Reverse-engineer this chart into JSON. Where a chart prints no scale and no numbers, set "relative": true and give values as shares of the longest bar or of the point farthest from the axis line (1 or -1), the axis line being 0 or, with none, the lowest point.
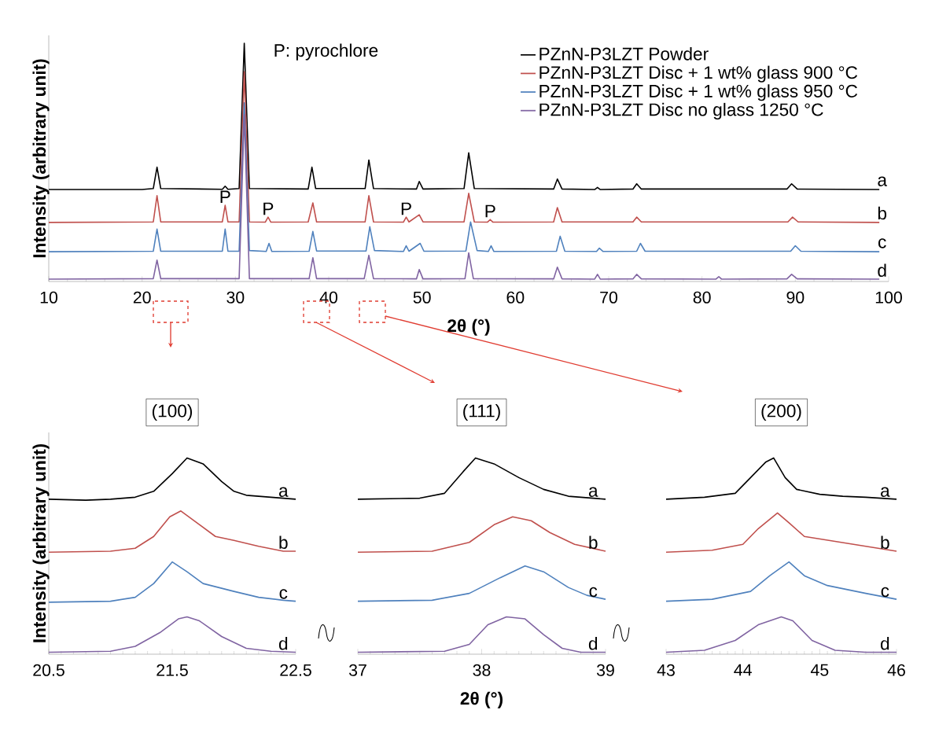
{
  "chart_data": [
    {
      "type": "line",
      "relative": true,
      "xlabel": "2θ (°)",
      "ylabel": "Intensity (arbitrary unit)",
      "xlim": [
        10,
        100
      ],
      "xticks": [
        10,
        20,
        30,
        40,
        50,
        60,
        70,
        80,
        90,
        100
      ],
      "legend": "top right",
      "annotations": [
        "P: pyrochlore",
        {
          "text": "P",
          "x": 28.9,
          "y": 0.32
        },
        {
          "text": "P",
          "x": 33.5,
          "y": 0.27
        },
        {
          "text": "P",
          "x": 48.3,
          "y": 0.27
        },
        {
          "text": "P",
          "x": 57.3,
          "y": 0.26
        },
        {
          "text": "a",
          "x": 99.3,
          "y": 0.39
        },
        {
          "text": "b",
          "x": 99.3,
          "y": 0.25
        },
        {
          "text": "c",
          "x": 99.3,
          "y": 0.13
        },
        {
          "text": "d",
          "x": 99.3,
          "y": 0.01
        }
      ],
      "series": [
        {
          "name": "PZnN-P3LZT Powder",
          "color": "#000000",
          "x": [
            10,
            20,
            21.2,
            21.6,
            22,
            28.6,
            28.9,
            29.2,
            30.4,
            30.95,
            31.5,
            37.8,
            38.2,
            38.6,
            43.9,
            44.3,
            44.8,
            49.4,
            49.7,
            50.1,
            54.5,
            55,
            55.6,
            64.1,
            64.5,
            65,
            68.5,
            68.8,
            69.1,
            72.6,
            73,
            73.5,
            89.1,
            89.6,
            90.2,
            99
          ],
          "values": [
            0.386,
            0.386,
            0.39,
            0.48,
            0.39,
            0.387,
            0.4,
            0.387,
            0.39,
            1.0,
            0.39,
            0.388,
            0.48,
            0.39,
            0.39,
            0.51,
            0.39,
            0.388,
            0.42,
            0.388,
            0.39,
            0.54,
            0.39,
            0.388,
            0.43,
            0.388,
            0.386,
            0.395,
            0.386,
            0.388,
            0.41,
            0.388,
            0.388,
            0.41,
            0.388,
            0.386
          ]
        },
        {
          "name": "PZnN-P3LZT Disc + 1 wt% glass 900 °C",
          "color": "#c0504d",
          "x": [
            10,
            21.2,
            21.6,
            22,
            28.6,
            28.9,
            29.2,
            30.4,
            30.95,
            31.5,
            33.2,
            33.5,
            33.8,
            37.8,
            38.3,
            38.7,
            43.9,
            44.3,
            44.8,
            48.0,
            48.3,
            48.6,
            49.7,
            50.1,
            54.5,
            55,
            55.6,
            57.0,
            57.3,
            57.6,
            64.1,
            64.5,
            65,
            72.6,
            73,
            73.5,
            89.2,
            89.7,
            90.3,
            99
          ],
          "values": [
            0.248,
            0.25,
            0.36,
            0.25,
            0.25,
            0.32,
            0.25,
            0.25,
            0.88,
            0.25,
            0.249,
            0.27,
            0.249,
            0.25,
            0.33,
            0.25,
            0.25,
            0.36,
            0.25,
            0.249,
            0.27,
            0.25,
            0.28,
            0.25,
            0.25,
            0.37,
            0.25,
            0.249,
            0.26,
            0.249,
            0.25,
            0.31,
            0.25,
            0.25,
            0.27,
            0.25,
            0.25,
            0.27,
            0.25,
            0.248
          ]
        },
        {
          "name": "PZnN-P3LZT Disc + 1 wt% glass 950 °C",
          "color": "#4f81bd",
          "x": [
            10,
            21.2,
            21.6,
            22,
            28.6,
            28.9,
            29.2,
            30.4,
            30.95,
            31.5,
            33.3,
            33.6,
            33.9,
            37.9,
            38.3,
            38.7,
            44.0,
            44.4,
            44.9,
            48.0,
            48.3,
            48.6,
            49.8,
            50.2,
            54.7,
            55.2,
            55.9,
            57.1,
            57.4,
            57.7,
            64.4,
            64.8,
            65.3,
            68.7,
            69,
            69.4,
            73,
            73.4,
            73.9,
            89.5,
            90,
            90.6,
            99
          ],
          "values": [
            0.125,
            0.127,
            0.22,
            0.127,
            0.127,
            0.22,
            0.127,
            0.127,
            0.75,
            0.13,
            0.126,
            0.16,
            0.126,
            0.127,
            0.21,
            0.128,
            0.128,
            0.23,
            0.13,
            0.126,
            0.15,
            0.127,
            0.16,
            0.127,
            0.128,
            0.25,
            0.13,
            0.126,
            0.15,
            0.126,
            0.127,
            0.19,
            0.127,
            0.126,
            0.14,
            0.126,
            0.127,
            0.16,
            0.127,
            0.127,
            0.15,
            0.127,
            0.125
          ]
        },
        {
          "name": "PZnN-P3LZT Disc no glass 1250 °C",
          "color": "#8064a2",
          "x": [
            10,
            21.2,
            21.6,
            22,
            30.4,
            30.95,
            31.5,
            37.9,
            38.3,
            38.7,
            43.8,
            44.3,
            44.8,
            49.4,
            49.7,
            50.1,
            54.6,
            55,
            55.5,
            64.1,
            64.5,
            65,
            68.5,
            68.8,
            69.1,
            72.6,
            73,
            73.5,
            81.5,
            81.8,
            82.1,
            89.1,
            89.6,
            90.2,
            99
          ],
          "values": [
            0.01,
            0.012,
            0.09,
            0.012,
            0.012,
            0.7,
            0.012,
            0.012,
            0.1,
            0.012,
            0.012,
            0.11,
            0.012,
            0.011,
            0.05,
            0.011,
            0.012,
            0.12,
            0.012,
            0.011,
            0.06,
            0.011,
            0.01,
            0.03,
            0.01,
            0.011,
            0.03,
            0.011,
            0.01,
            0.02,
            0.01,
            0.011,
            0.03,
            0.011,
            0.01
          ]
        }
      ]
    },
    {
      "type": "line",
      "relative": true,
      "title": "(100)",
      "ylabel": "Intensity (arbitrary unit)",
      "xlim": [
        20.5,
        22.5
      ],
      "xticks": [
        20.5,
        21.5,
        22.5
      ],
      "annotations": [
        {
          "text": "a",
          "x": 22.4,
          "y": 0.79
        },
        {
          "text": "b",
          "x": 22.4,
          "y": 0.525
        },
        {
          "text": "c",
          "x": 22.4,
          "y": 0.27
        },
        {
          "text": "d",
          "x": 22.4,
          "y": 0.01
        }
      ],
      "series": [
        {
          "color": "#000000",
          "x": [
            20.5,
            20.8,
            21.0,
            21.2,
            21.35,
            21.5,
            21.62,
            21.75,
            21.9,
            22.0,
            22.1,
            22.3,
            22.5
          ],
          "values": [
            0.79,
            0.785,
            0.79,
            0.8,
            0.83,
            0.92,
            1.0,
            0.97,
            0.88,
            0.83,
            0.81,
            0.8,
            0.79
          ]
        },
        {
          "color": "#c0504d",
          "x": [
            20.5,
            21.0,
            21.2,
            21.35,
            21.48,
            21.57,
            21.7,
            21.85,
            22.0,
            22.2,
            22.4,
            22.5
          ],
          "values": [
            0.52,
            0.525,
            0.54,
            0.6,
            0.7,
            0.73,
            0.67,
            0.6,
            0.58,
            0.55,
            0.525,
            0.525
          ]
        },
        {
          "color": "#4f81bd",
          "x": [
            20.5,
            21.0,
            21.2,
            21.35,
            21.5,
            21.62,
            21.75,
            22.0,
            22.2,
            22.4,
            22.5
          ],
          "values": [
            0.265,
            0.27,
            0.29,
            0.36,
            0.47,
            0.42,
            0.36,
            0.32,
            0.29,
            0.275,
            0.27
          ]
        },
        {
          "color": "#8064a2",
          "x": [
            20.5,
            21.0,
            21.2,
            21.4,
            21.55,
            21.62,
            21.72,
            21.9,
            22.1,
            22.3,
            22.5
          ],
          "values": [
            0.01,
            0.015,
            0.04,
            0.11,
            0.18,
            0.19,
            0.17,
            0.09,
            0.03,
            0.015,
            0.01
          ]
        }
      ]
    },
    {
      "type": "line",
      "relative": true,
      "title": "(111)",
      "xlabel": "2θ (°)",
      "xlim": [
        37,
        39
      ],
      "xticks": [
        37,
        38,
        39
      ],
      "annotations": [
        {
          "text": "a",
          "x": 38.9,
          "y": 0.79
        },
        {
          "text": "b",
          "x": 38.9,
          "y": 0.525
        },
        {
          "text": "c",
          "x": 38.9,
          "y": 0.28
        },
        {
          "text": "d",
          "x": 38.9,
          "y": 0.01
        }
      ],
      "series": [
        {
          "color": "#000000",
          "x": [
            37,
            37.5,
            37.7,
            37.85,
            37.95,
            38.1,
            38.3,
            38.5,
            38.7,
            39
          ],
          "values": [
            0.79,
            0.795,
            0.82,
            0.93,
            1.0,
            0.97,
            0.9,
            0.84,
            0.805,
            0.79
          ]
        },
        {
          "color": "#c0504d",
          "x": [
            37,
            37.6,
            37.9,
            38.1,
            38.25,
            38.4,
            38.55,
            38.75,
            39
          ],
          "values": [
            0.52,
            0.525,
            0.57,
            0.66,
            0.7,
            0.68,
            0.62,
            0.56,
            0.525
          ]
        },
        {
          "color": "#4f81bd",
          "x": [
            37,
            37.6,
            37.9,
            38.15,
            38.35,
            38.5,
            38.7,
            38.85,
            39
          ],
          "values": [
            0.27,
            0.275,
            0.31,
            0.39,
            0.45,
            0.42,
            0.34,
            0.3,
            0.28
          ]
        },
        {
          "color": "#8064a2",
          "x": [
            37,
            37.7,
            37.9,
            38.05,
            38.2,
            38.35,
            38.5,
            38.65,
            38.8,
            39
          ],
          "values": [
            0.01,
            0.015,
            0.05,
            0.15,
            0.19,
            0.18,
            0.1,
            0.03,
            0.01,
            0.01
          ]
        }
      ]
    },
    {
      "type": "line",
      "relative": true,
      "title": "(200)",
      "xlim": [
        43,
        46
      ],
      "xticks": [
        43,
        44,
        45,
        46
      ],
      "annotations": [
        {
          "text": "a",
          "x": 45.85,
          "y": 0.79
        },
        {
          "text": "b",
          "x": 45.85,
          "y": 0.525
        },
        {
          "text": "c",
          "x": 45.85,
          "y": 0.28
        },
        {
          "text": "d",
          "x": 45.85,
          "y": 0.01
        }
      ],
      "series": [
        {
          "color": "#000000",
          "x": [
            43,
            43.5,
            43.9,
            44.1,
            44.3,
            44.4,
            44.55,
            44.7,
            45,
            45.3,
            45.6,
            46
          ],
          "values": [
            0.79,
            0.8,
            0.82,
            0.9,
            0.98,
            1.0,
            0.9,
            0.84,
            0.815,
            0.805,
            0.8,
            0.79
          ]
        },
        {
          "color": "#c0504d",
          "x": [
            43,
            43.6,
            44.0,
            44.2,
            44.45,
            44.6,
            44.8,
            45.2,
            45.6,
            46
          ],
          "values": [
            0.52,
            0.53,
            0.56,
            0.64,
            0.72,
            0.67,
            0.6,
            0.575,
            0.55,
            0.525
          ]
        },
        {
          "color": "#4f81bd",
          "x": [
            43,
            43.6,
            44.1,
            44.35,
            44.6,
            44.8,
            45.1,
            45.6,
            46
          ],
          "values": [
            0.27,
            0.28,
            0.32,
            0.4,
            0.47,
            0.4,
            0.35,
            0.31,
            0.28
          ]
        },
        {
          "color": "#8064a2",
          "x": [
            43,
            43.5,
            43.9,
            44.2,
            44.5,
            44.65,
            44.9,
            45.2,
            45.6,
            46
          ],
          "values": [
            0.01,
            0.02,
            0.07,
            0.15,
            0.19,
            0.17,
            0.07,
            0.02,
            0.01,
            0.01
          ]
        }
      ]
    }
  ]
}
